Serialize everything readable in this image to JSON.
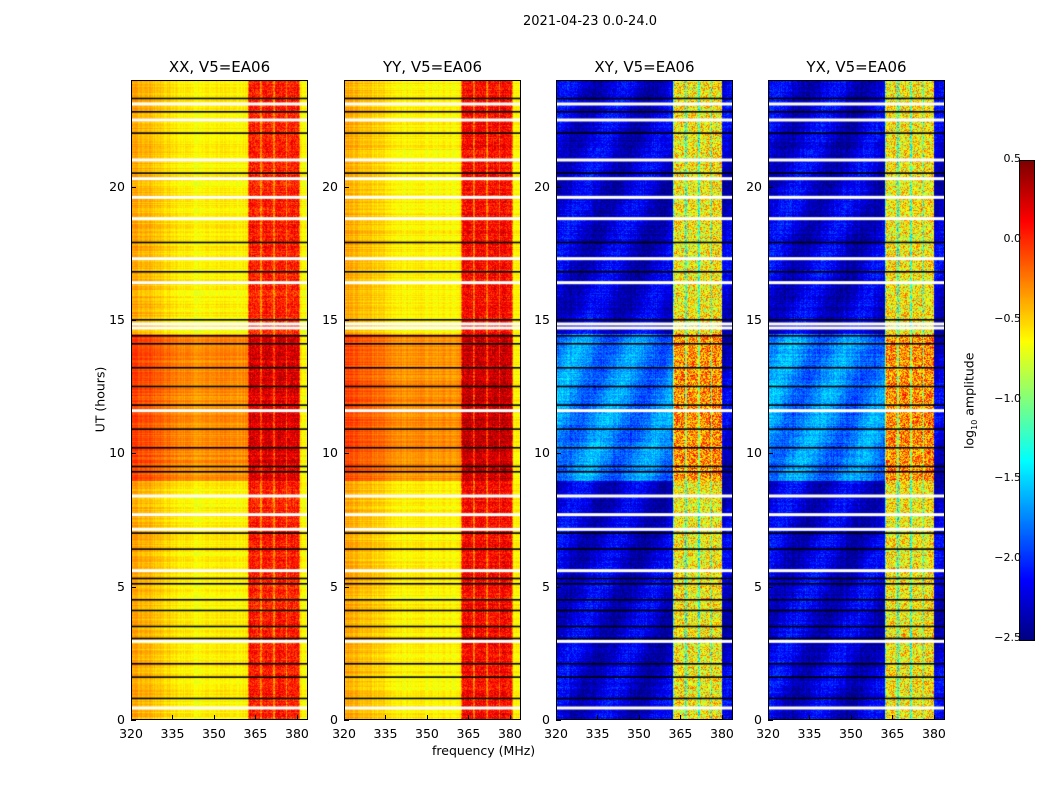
{
  "chart_data": {
    "type": "heatmap",
    "title": "2021-04-23 0.0-24.0",
    "xlabel": "frequency (MHz)",
    "ylabel": "UT (hours)",
    "xlim": [
      320,
      384
    ],
    "ylim": [
      0,
      24
    ],
    "xticks": [
      "320",
      "335",
      "350",
      "365",
      "380"
    ],
    "yticks": [
      "0",
      "5",
      "10",
      "15",
      "20"
    ],
    "colorbar": {
      "label": "log10 amplitude",
      "label_main": "log",
      "label_sub": "10",
      "label_rest": " amplitude",
      "range": [
        -2.5,
        0.5
      ],
      "ticks": [
        "0.5",
        "0.0",
        "−0.5",
        "−1.0",
        "−1.5",
        "−2.0",
        "−2.5"
      ],
      "colormap": "jet"
    },
    "panels": [
      {
        "title": "XX, V5=EA06",
        "base_level": -0.6,
        "low_freq_level": -0.35,
        "rfi_band_mhz": [
          362,
          381
        ],
        "rfi_level": 0.05,
        "active_hours": [
          9,
          14.5
        ],
        "active_boost": 0.3
      },
      {
        "title": "YY, V5=EA06",
        "base_level": -0.6,
        "low_freq_level": -0.35,
        "rfi_band_mhz": [
          362,
          381
        ],
        "rfi_level": 0.1,
        "active_hours": [
          9,
          14.5
        ],
        "active_boost": 0.3
      },
      {
        "title": "XY, V5=EA06",
        "base_level": -2.25,
        "low_freq_level": -2.2,
        "rfi_band_mhz": [
          362,
          380
        ],
        "rfi_level": -0.6,
        "active_hours": [
          9,
          14.5
        ],
        "active_boost": 0.5
      },
      {
        "title": "YX, V5=EA06",
        "base_level": -2.25,
        "low_freq_level": -2.2,
        "rfi_band_mhz": [
          362,
          380
        ],
        "rfi_level": -0.6,
        "active_hours": [
          9,
          14.5
        ],
        "active_boost": 0.5
      }
    ],
    "flagged_white_hours": [
      0.45,
      2.95,
      5.6,
      7.15,
      7.7,
      8.4,
      11.6,
      14.7,
      14.85,
      16.4,
      17.3,
      18.8,
      19.6,
      20.3,
      21.0,
      22.5,
      23.1
    ],
    "flagged_black_hours": [
      0.8,
      1.6,
      2.1,
      3.05,
      3.5,
      4.1,
      4.5,
      5.1,
      5.3,
      6.4,
      7.0,
      9.3,
      9.5,
      10.2,
      10.9,
      11.8,
      12.5,
      13.2,
      14.1,
      14.4,
      15.0,
      16.8,
      17.9,
      20.5,
      22.0,
      22.8,
      23.3
    ]
  }
}
